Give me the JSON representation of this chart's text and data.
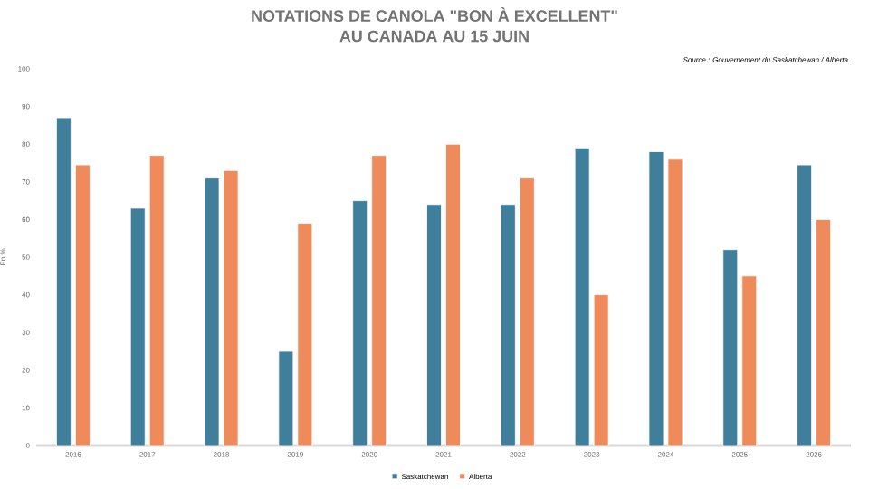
{
  "chart_data": {
    "type": "bar",
    "title": "NOTATIONS DE CANOLA \"BON À EXCELLENT\"",
    "subtitle": "AU CANADA AU 15 JUIN",
    "ylabel": "En %",
    "annotations": [
      "*Source : Gouvernement du Saskatchewan / Alberta*"
    ],
    "categories": [
      "2016",
      "2017",
      "2018",
      "2019",
      "2020",
      "2021",
      "2022",
      "2023",
      "2024",
      "2025",
      "2026"
    ],
    "series": [
      {
        "name": "Saskatchewan",
        "color": "#3f7f9b",
        "values": [
          87,
          63,
          71,
          25,
          65,
          64,
          64,
          79,
          78,
          52,
          74.5
        ]
      },
      {
        "name": "Alberta",
        "color": "#ef8a5a",
        "values": [
          74.5,
          77,
          73,
          59,
          77,
          80,
          71,
          40,
          76,
          45,
          60
        ]
      }
    ],
    "ylim": [
      0,
      100
    ],
    "yticks": [
      0,
      10,
      20,
      30,
      40,
      50,
      60,
      70,
      80,
      90,
      100
    ],
    "grid": false,
    "legend": "bottom"
  }
}
